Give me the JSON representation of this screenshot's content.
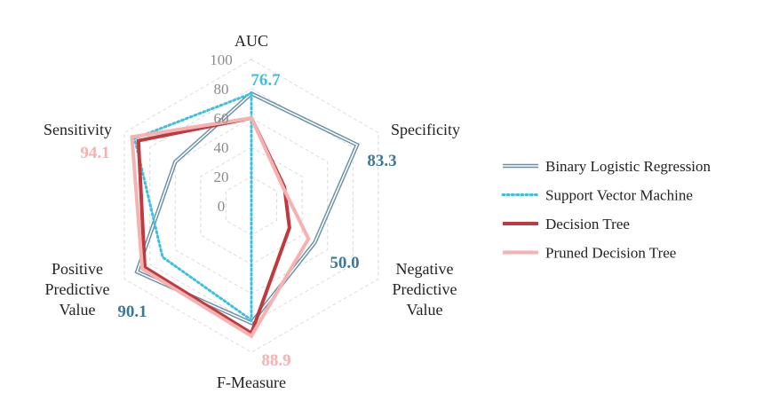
{
  "chart_data": {
    "type": "radar",
    "axes": [
      "AUC",
      "Specificity",
      "Negative Predictive Value",
      "F-Measure",
      "Positive Predictive Value",
      "Sensitivity"
    ],
    "axis_label_lines": [
      [
        "AUC"
      ],
      [
        "Specificity"
      ],
      [
        "Negative",
        "Predictive",
        "Value"
      ],
      [
        "F-Measure"
      ],
      [
        "Positive",
        "Predictive",
        "Value"
      ],
      [
        "Sensitivity"
      ]
    ],
    "r_ticks": [
      "0",
      "20",
      "40",
      "60",
      "80",
      "100"
    ],
    "r_range": [
      0,
      100
    ],
    "grid": true,
    "legend_position": "right",
    "series": [
      {
        "name": "Binary Logistic Regression",
        "values": [
          76.7,
          83.3,
          50.0,
          80.0,
          90.1,
          60.0
        ],
        "color": "#6a90a8",
        "style": "double"
      },
      {
        "name": "Support Vector Machine",
        "values": [
          76.7,
          0,
          0,
          78.0,
          70.0,
          92.0
        ],
        "color": "#3ec1dd",
        "style": "dotted"
      },
      {
        "name": "Decision Tree",
        "values": [
          60.0,
          26.0,
          30.0,
          87.0,
          84.0,
          89.0
        ],
        "color": "#c0393e",
        "style": "solid"
      },
      {
        "name": "Pruned Decision Tree",
        "values": [
          60.0,
          25.0,
          45.0,
          88.9,
          86.0,
          94.1
        ],
        "color": "#f6b1b1",
        "style": "solid"
      }
    ],
    "annotations": [
      {
        "text": "76.7",
        "color": "#3ec1dd"
      },
      {
        "text": "83.3",
        "color": "#3d7899"
      },
      {
        "text": "50.0",
        "color": "#3d7899"
      },
      {
        "text": "88.9",
        "color": "#f6b1b1"
      },
      {
        "text": "90.1",
        "color": "#3d7899"
      },
      {
        "text": "94.1",
        "color": "#f6b1b1"
      }
    ]
  }
}
